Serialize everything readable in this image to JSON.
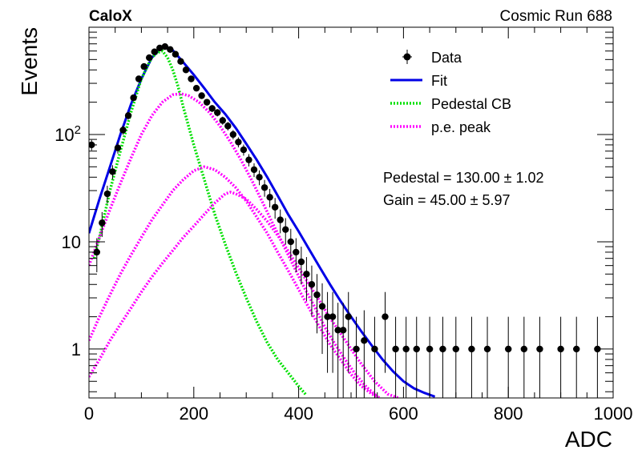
{
  "header": {
    "left_label": "CaloX",
    "right_label": "Cosmic Run 688"
  },
  "chart_data": {
    "type": "scatter",
    "xlabel": "ADC",
    "ylabel": "Events",
    "xlim": [
      0,
      1000
    ],
    "ylim": [
      0.35,
      1000
    ],
    "y_scale": "log",
    "x_ticks": [
      0,
      200,
      400,
      600,
      800,
      1000
    ],
    "x_tick_labels": [
      "0",
      "200",
      "400",
      "600",
      "800",
      "1000"
    ],
    "y_ticks": [
      1,
      10,
      100
    ],
    "y_tick_labels": [
      "1",
      "10",
      "10^2"
    ],
    "legend_position": "top-right",
    "legend": [
      {
        "label": "Data",
        "style": "marker",
        "color": "#000000"
      },
      {
        "label": "Fit",
        "style": "line",
        "color": "#0000e6"
      },
      {
        "label": "Pedestal CB",
        "style": "dotted",
        "color": "#00e000"
      },
      {
        "label": "p.e. peak",
        "style": "dotted",
        "color": "#ff00ff"
      }
    ],
    "annotations": [
      {
        "prefix": "Pedestal = ",
        "value": "130.00",
        "pm": "±",
        "error": "1.02"
      },
      {
        "prefix": "Gain = ",
        "value": "45.00",
        "pm": "±",
        "error": "5.97"
      }
    ],
    "series": [
      {
        "name": "Data",
        "kind": "points_with_errors",
        "color": "#000000",
        "x": [
          5,
          15,
          25,
          35,
          45,
          55,
          65,
          75,
          85,
          95,
          105,
          115,
          125,
          135,
          145,
          155,
          165,
          175,
          185,
          195,
          205,
          215,
          225,
          235,
          245,
          255,
          265,
          275,
          285,
          295,
          305,
          315,
          325,
          335,
          345,
          355,
          365,
          375,
          385,
          395,
          405,
          415,
          425,
          435,
          445,
          455,
          465,
          475,
          485,
          495,
          510,
          525,
          545,
          565,
          585,
          605,
          625,
          650,
          675,
          700,
          730,
          760,
          800,
          830,
          860,
          900,
          930,
          970
        ],
        "y": [
          80,
          8,
          15,
          28,
          45,
          75,
          110,
          150,
          220,
          330,
          430,
          520,
          590,
          640,
          660,
          620,
          560,
          480,
          400,
          330,
          270,
          230,
          200,
          175,
          160,
          135,
          120,
          100,
          85,
          72,
          58,
          47,
          40,
          32,
          26,
          21,
          16,
          13,
          10,
          8,
          6.5,
          5,
          4,
          3.2,
          2.5,
          2,
          2,
          1.5,
          1.5,
          2,
          1,
          1.2,
          1,
          2,
          1,
          1,
          1,
          1,
          1,
          1,
          1,
          1,
          1,
          1,
          1,
          1,
          1,
          1
        ],
        "yerr": [
          9,
          2.8,
          3.9,
          5.3,
          6.7,
          8.7,
          10.5,
          12.2,
          14.8,
          18.2,
          20.7,
          22.8,
          24.3,
          25.3,
          25.7,
          24.9,
          23.7,
          21.9,
          20,
          18.2,
          16.4,
          15.2,
          14.1,
          13.2,
          12.6,
          11.6,
          11,
          10,
          9.2,
          8.5,
          7.6,
          6.9,
          6.3,
          5.7,
          5.1,
          4.6,
          4,
          3.6,
          3.2,
          2.8,
          2.5,
          2.2,
          2,
          1.8,
          1.6,
          1.4,
          1.4,
          1.2,
          1.2,
          1.4,
          1,
          1.1,
          1,
          1.4,
          1,
          1,
          1,
          1,
          1,
          1,
          1,
          1,
          1,
          1,
          1,
          1,
          1,
          1
        ]
      },
      {
        "name": "Fit",
        "kind": "line",
        "color": "#0000e6",
        "x": [
          0,
          20,
          40,
          60,
          80,
          100,
          120,
          140,
          160,
          180,
          200,
          220,
          240,
          260,
          280,
          300,
          320,
          340,
          360,
          380,
          400,
          420,
          440,
          460,
          480,
          500,
          520,
          540,
          560,
          580,
          600,
          620,
          640,
          660
        ],
        "y": [
          12,
          25,
          50,
          100,
          190,
          330,
          520,
          660,
          610,
          470,
          360,
          270,
          200,
          155,
          115,
          82,
          58,
          40,
          27,
          18,
          12.5,
          8.5,
          5.8,
          4,
          2.8,
          2,
          1.45,
          1.07,
          0.8,
          0.62,
          0.5,
          0.43,
          0.39,
          0.36
        ]
      },
      {
        "name": "Pedestal CB",
        "kind": "dotted",
        "color": "#00e000",
        "x": [
          10,
          20,
          40,
          60,
          80,
          100,
          115,
          120,
          130,
          140,
          150,
          160,
          170,
          180,
          200,
          220,
          240,
          260,
          280,
          300,
          320,
          340,
          360,
          380,
          400,
          415
        ],
        "y": [
          7,
          11,
          30,
          70,
          160,
          330,
          470,
          520,
          580,
          600,
          520,
          400,
          280,
          180,
          80,
          38,
          18,
          9.5,
          5.2,
          3,
          1.8,
          1.15,
          0.8,
          0.6,
          0.45,
          0.37
        ]
      },
      {
        "name": "p.e. peak 1",
        "kind": "dotted",
        "color": "#ff00ff",
        "x": [
          0,
          20,
          40,
          60,
          80,
          100,
          120,
          140,
          160,
          175,
          190,
          210,
          230,
          250,
          270,
          290,
          310,
          330,
          350,
          370,
          390,
          410,
          430,
          450,
          470,
          490,
          510,
          530,
          550
        ],
        "y": [
          6,
          11,
          20,
          35,
          60,
          100,
          150,
          200,
          235,
          240,
          230,
          200,
          160,
          120,
          85,
          58,
          38,
          24,
          15,
          9.5,
          6,
          3.8,
          2.5,
          1.6,
          1.1,
          0.78,
          0.57,
          0.44,
          0.36
        ]
      },
      {
        "name": "p.e. peak 2",
        "kind": "dotted",
        "color": "#ff00ff",
        "x": [
          0,
          20,
          40,
          60,
          80,
          100,
          120,
          140,
          160,
          180,
          200,
          220,
          240,
          260,
          280,
          300,
          320,
          340,
          360,
          380,
          400,
          420,
          440,
          460,
          480,
          500,
          520,
          540,
          555
        ],
        "y": [
          1.2,
          2,
          3.2,
          5,
          7.5,
          11,
          16,
          22,
          30,
          38,
          46,
          50,
          47,
          40,
          32,
          24,
          17,
          12,
          8,
          5.4,
          3.6,
          2.4,
          1.6,
          1.1,
          0.8,
          0.58,
          0.45,
          0.38,
          0.35
        ]
      },
      {
        "name": "p.e. peak 3",
        "kind": "dotted",
        "color": "#ff00ff",
        "x": [
          0,
          20,
          40,
          60,
          80,
          100,
          120,
          140,
          160,
          180,
          200,
          220,
          240,
          260,
          270,
          280,
          300,
          320,
          340,
          360,
          380,
          400,
          420,
          440,
          460,
          480,
          500,
          520,
          545,
          570,
          590
        ],
        "y": [
          0.55,
          0.8,
          1.2,
          1.7,
          2.4,
          3.4,
          4.7,
          6.3,
          8.3,
          11,
          14,
          18,
          23,
          28,
          29,
          28,
          25,
          20,
          15.5,
          11.5,
          8.2,
          5.7,
          4,
          2.8,
          1.95,
          1.4,
          1,
          0.72,
          0.5,
          0.38,
          0.35
        ]
      }
    ]
  }
}
